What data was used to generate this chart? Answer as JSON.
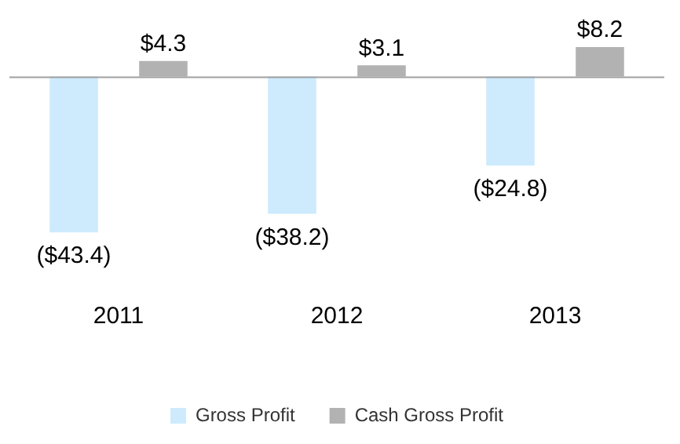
{
  "chart_data": {
    "type": "bar",
    "categories": [
      "2011",
      "2012",
      "2013"
    ],
    "series": [
      {
        "name": "Gross Profit",
        "color": "#cdebfd",
        "values": [
          -43.4,
          -38.2,
          -24.8
        ],
        "value_labels": [
          "($43.4)",
          "($38.2)",
          "($24.8)"
        ]
      },
      {
        "name": "Cash Gross Profit",
        "color": "#b2b2b2",
        "values": [
          4.3,
          3.1,
          8.2
        ],
        "value_labels": [
          "$4.3",
          "$3.1",
          "$8.2"
        ]
      }
    ],
    "legend": "bottom",
    "grid": false
  }
}
